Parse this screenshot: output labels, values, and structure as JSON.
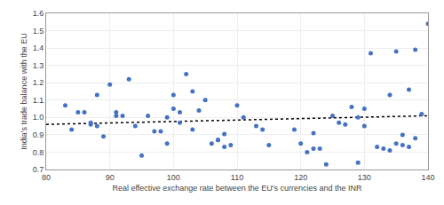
{
  "chart_data": {
    "type": "scatter",
    "xlabel": "Real effective exchange rate between the EU's currencies and the INR",
    "ylabel": "India's trade balance with the EU",
    "xlim": [
      80,
      140
    ],
    "ylim": [
      0.7,
      1.6
    ],
    "xticks": [
      80,
      90,
      100,
      110,
      120,
      130,
      140
    ],
    "yticks": [
      0.7,
      0.8,
      0.9,
      {
        "value": 1.0,
        "label": "1.0"
      },
      1.1,
      1.2,
      1.3,
      1.4,
      1.5,
      1.6
    ],
    "grid": true,
    "series": [
      {
        "type": "scatter",
        "color": "#4472C4",
        "marker": "circle",
        "x": [
          83,
          84,
          85,
          86,
          87,
          87,
          88,
          88,
          89,
          90,
          91,
          91,
          92,
          93,
          94,
          95,
          96,
          97,
          98,
          99,
          99,
          100,
          100,
          101,
          101,
          102,
          103,
          103,
          104,
          105,
          106,
          107,
          107,
          108,
          108,
          109,
          110,
          111,
          113,
          114,
          115,
          119,
          120,
          121,
          122,
          122,
          123,
          124,
          125,
          126,
          127,
          128,
          129,
          129,
          130,
          130,
          131,
          132,
          133,
          134,
          134,
          135,
          135,
          136,
          136,
          137,
          137,
          138,
          138,
          139,
          140
        ],
        "values": [
          1.07,
          0.93,
          1.03,
          1.03,
          0.97,
          0.96,
          0.95,
          1.13,
          0.89,
          1.19,
          1.03,
          1.01,
          1.01,
          1.22,
          0.95,
          0.78,
          1.01,
          0.92,
          0.92,
          1.0,
          0.85,
          1.05,
          1.13,
          1.03,
          0.97,
          1.25,
          0.93,
          1.15,
          1.04,
          1.1,
          0.85,
          0.87,
          0.87,
          0.83,
          0.905,
          0.84,
          1.07,
          1.0,
          0.95,
          0.93,
          0.84,
          0.93,
          0.85,
          0.8,
          0.91,
          0.82,
          0.82,
          0.73,
          1.01,
          0.97,
          0.96,
          1.06,
          0.74,
          1.0,
          1.05,
          0.95,
          1.37,
          0.83,
          0.82,
          1.13,
          0.81,
          1.38,
          0.85,
          0.84,
          0.9,
          1.16,
          0.83,
          1.39,
          0.88,
          1.02,
          1.54
        ]
      },
      {
        "type": "line",
        "color": "#000000",
        "line_style": "dotted",
        "x": [
          80,
          140
        ],
        "values": [
          0.96,
          1.01
        ]
      }
    ]
  }
}
